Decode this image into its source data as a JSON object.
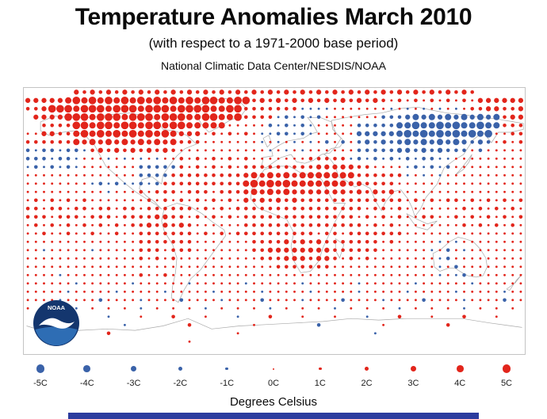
{
  "header": {
    "title": "Temperature Anomalies March 2010",
    "subtitle": "(with respect to a 1971-2000 base period)",
    "attribution": "National Climatic Data Center/NESDIS/NOAA"
  },
  "noaa_logo": {
    "text": "NOAA"
  },
  "legend": {
    "units_label": "Degrees Celsius",
    "entries": [
      {
        "label": "-5C",
        "value": -5
      },
      {
        "label": "-4C",
        "value": -4
      },
      {
        "label": "-3C",
        "value": -3
      },
      {
        "label": "-2C",
        "value": -2
      },
      {
        "label": "-1C",
        "value": -1
      },
      {
        "label": "0C",
        "value": 0
      },
      {
        "label": "1C",
        "value": 1
      },
      {
        "label": "2C",
        "value": 2
      },
      {
        "label": "3C",
        "value": 3
      },
      {
        "label": "4C",
        "value": 4
      },
      {
        "label": "5C",
        "value": 5
      }
    ]
  },
  "colors": {
    "warm": "#e2251b",
    "cold": "#3a62a9",
    "coastline": "#a9a9a9",
    "frame": "#c4c4c4",
    "footer_bar": "#2b3b9e"
  },
  "chart_data": {
    "type": "heatmap",
    "subtype": "dot-grid-anomaly-map",
    "title": "Temperature Anomalies March 2010",
    "subtitle": "(with respect to a 1971-2000 base period)",
    "source": "National Climatic Data Center/NESDIS/NOAA",
    "units": "Degrees Celsius",
    "value_range": [
      -5,
      5
    ],
    "lon_range": [
      -180,
      180
    ],
    "lat_range": [
      90,
      -90
    ],
    "grid_size": {
      "cols": 62,
      "rows": 32
    },
    "legend_position": "bottom",
    "encoding": {
      "1-5": "positive anomaly +1C..+5C (red dot, larger = warmer)",
      "a-e": "negative anomaly -1C..-5C (blue dot, larger = colder)",
      "0": "near-zero anomaly (tiny dot)",
      ".": "no data / no dot",
      "note": "each row is an array of string segments; join segments to get the 62 cells of that row; rows run north to south (90N..90S), columns west to east (180W..180E)"
    },
    "grid_rows": [
      [
        "......",
        "3232323232",
        "3232323232",
        "3232323232",
        "3232323232",
        "3232323232",
        "......"
      ],
      [
        "33333",
        "4545454545454545",
        "4554455",
        "2323232323232323",
        "212121212121",
        "333333"
      ],
      [
        "223",
        "555455545554555455",
        "554455",
        "2222222",
        "aaaa",
        "111111",
        "1a1a1a1a1a1",
        "2233223"
      ],
      [
        ".",
        "3333",
        "555455545554555",
        "4455445",
        "2222",
        "ababab",
        "1111111",
        "bbb",
        "cdcdcdcdcdcd",
        "233"
      ],
      [
        "..",
        "2222",
        "55455455455455",
        "44444",
        "11111",
        "bababa",
        "11111",
        "bbbbb",
        "ddeddededdedd",
        "222"
      ],
      [
        "11",
        "3322",
        "4545454545454",
        "333",
        "1212121",
        "aabbaba",
        "11111",
        "ccccc",
        "dededededede",
        "1122"
      ],
      [
        "22",
        "2222",
        "4343434343434",
        "222",
        "1111111",
        "a1a1a1a",
        "1b1b1",
        "bcbcb",
        "cdcdcdcdcbcb",
        "1212"
      ],
      [
        "babbabba",
        "23232323232",
        "1111111111",
        "1a1a1a1",
        "11111",
        "bbbbb",
        "ccbcbcb",
        "bb1b1",
        "1111"
      ],
      [
        "bbbabba",
        "11",
        "1a1a1a1a1",
        "1212121212",
        "1111111",
        "22222",
        "ababab",
        "ababbaa",
        "111111111"
      ],
      [
        "abababa",
        "1111111",
        "bbbbb",
        "212121212",
        "222222",
        "2233333",
        "221111",
        "ababab",
        "111111111"
      ],
      [
        "11111111",
        "111111",
        "bbbb",
        "222222222",
        "3434343",
        "4444444",
        "222222",
        "a1a1a1",
        "111111111"
      ],
      [
        "11111111",
        "ababa",
        "abab",
        "2222222222",
        "4545454",
        "444444",
        "332222",
        "1111111",
        "111111111"
      ],
      [
        "111111111",
        "1a111",
        "2122212221222",
        "3434343",
        "333333",
        "232323",
        "1111111",
        "111111111"
      ],
      [
        "121212121",
        "111111",
        "212121212121",
        "3232323",
        "2222222",
        "222222",
        "121212",
        "212121212"
      ],
      [
        "221221221221221",
        "222222",
        "121212",
        "2222222",
        "2222222",
        "212212",
        "111111",
        "121212121"
      ],
      [
        "22212221222122",
        "223322",
        "1212121",
        "2222222",
        "222222",
        "2121212",
        "112211",
        "212121212"
      ],
      [
        "12121212121212",
        "2323232",
        "111111",
        "2222222",
        "2222222",
        "212121",
        "111111",
        "121212121"
      ],
      [
        "11211211211211",
        "2222222",
        "121212",
        "2222222",
        "2212212",
        "222222",
        "111111",
        "111111111"
      ],
      [
        "11111111111111",
        "2222222",
        "1111111",
        "222",
        "2323232",
        "222222",
        "121",
        "111",
        "1a1a11",
        "111111"
      ],
      [
        "11a11111a11111",
        "2221222",
        "1111111",
        "223",
        "3333333",
        "222222",
        "111",
        "111",
        "a1b1a1",
        "111111"
      ],
      [
        "11111111111111",
        "212121",
        "1111111",
        "1122",
        "2333233",
        "212121",
        "111",
        "111",
        "1ab111",
        "111111"
      ],
      [
        "11111111111111",
        "111111",
        "1111111",
        "1111",
        "2222222",
        "111111",
        "111",
        "111",
        "1a1b11",
        "111111"
      ],
      [
        "1111a111111111",
        "211211",
        "1111111",
        "1111111",
        "1111111",
        "111111",
        "111",
        "1a1ab1",
        "111111"
      ],
      [
        "111111a",
        "111111a",
        "111111a",
        "111111a",
        "111111a",
        "111111a",
        "111111a",
        "111111a",
        "111111"
      ],
      [
        "11111a",
        "11111a",
        "11111a",
        "11111a",
        "11111a",
        "11111a",
        "11111a",
        "11111a",
        "11111a",
        "11111a",
        "11"
      ],
      [
        "1111a1111b",
        "1111a1111b",
        "1111a1111b",
        "1111a1111b",
        "1111a1111b",
        "1111a1111b",
        "11"
      ],
      [
        "1.1.1.a.",
        "1.1.1.a.",
        "1.1.1.a.",
        "1.1.1.a.",
        "1.1.1.a.",
        "1.1.1.a.",
        "1.1.1.a.",
        "1.1.1."
      ],
      [
        "..",
        "1...",
        "2...",
        "a...",
        "1...",
        "2...",
        "1...",
        "a...",
        "2...",
        "1...",
        "1...",
        "a...",
        "2...",
        "1...",
        "2...",
        "1..."
      ],
      [
        "....1",
        ".......a",
        ".......2",
        ".......1",
        ".......b",
        ".......1",
        ".......2",
        "........."
      ],
      [
        "..........",
        "2",
        "...............",
        "1",
        "................",
        "a",
        ".................."
      ],
      [
        "....................",
        "1",
        "........................................."
      ],
      [
        "...............................",
        "..............................."
      ]
    ]
  }
}
